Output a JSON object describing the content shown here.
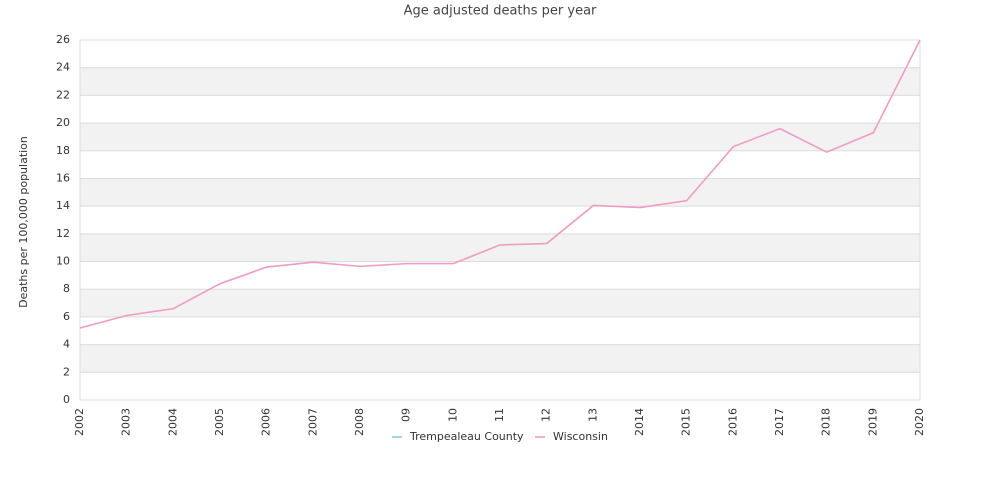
{
  "chart_data": {
    "type": "line",
    "title": "Age adjusted deaths per year",
    "y_label": "Deaths per 100,000 population",
    "categories": [
      "2002",
      "2003",
      "2004",
      "2005",
      "2006",
      "2007",
      "2008",
      "09",
      "10",
      "11",
      "12",
      "13",
      "2014",
      "2015",
      "2016",
      "2017",
      "2018",
      "2019",
      "2020"
    ],
    "series": [
      {
        "name": "Trempealeau County",
        "color": "#8ecae6",
        "values": [
          null,
          null,
          null,
          null,
          null,
          null,
          null,
          null,
          null,
          null,
          null,
          null,
          null,
          null,
          null,
          null,
          null,
          null,
          null
        ]
      },
      {
        "name": "Wisconsin",
        "color": "#f29ac6",
        "values": [
          5.2,
          6.1,
          6.6,
          8.4,
          9.6,
          9.95,
          9.65,
          9.85,
          9.85,
          11.2,
          11.3,
          14.05,
          13.9,
          14.4,
          18.3,
          19.6,
          17.9,
          19.3,
          26
        ]
      }
    ],
    "ylim": [
      0,
      26
    ],
    "yticks": [
      0,
      2,
      4,
      6,
      8,
      10,
      12,
      14,
      16,
      18,
      20,
      22,
      24,
      26
    ],
    "grid": true,
    "legend": "bottom"
  }
}
